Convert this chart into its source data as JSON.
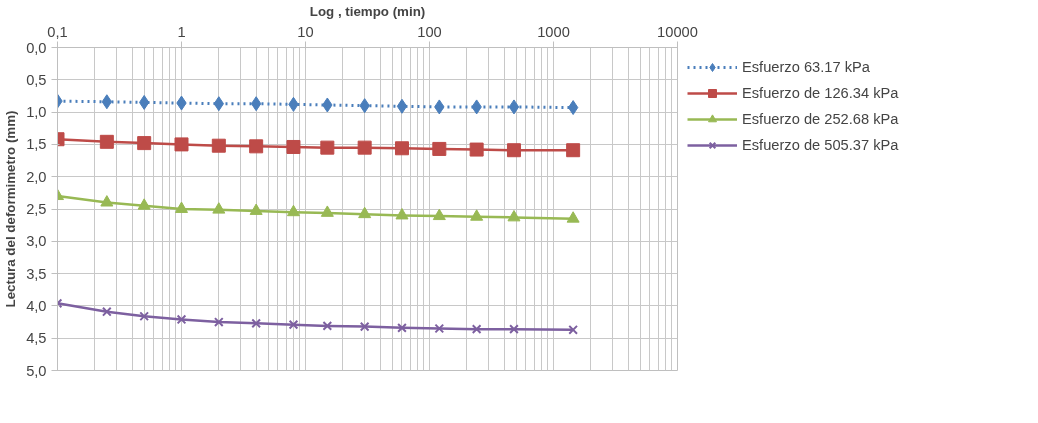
{
  "chart_data": {
    "type": "line",
    "xlabel": "Log , tiempo (min)",
    "ylabel": "Lectura del deformimetro (mm)",
    "log": "x",
    "grid": true,
    "legend": "right",
    "xlim": [
      0.1,
      10000
    ],
    "xticks": [
      {
        "value": 0.1,
        "label": "0,1"
      },
      1,
      10,
      100,
      1000,
      10000
    ],
    "ylim": [
      5,
      0
    ],
    "yticks": [
      {
        "value": 0,
        "label": "0,0"
      },
      {
        "value": 0.5,
        "label": "0,5"
      },
      {
        "value": 1,
        "label": "1,0"
      },
      {
        "value": 1.5,
        "label": "1,5"
      },
      {
        "value": 2,
        "label": "2,0"
      },
      {
        "value": 2.5,
        "label": "2,5"
      },
      {
        "value": 3,
        "label": "3,0"
      },
      {
        "value": 3.5,
        "label": "3,5"
      },
      {
        "value": 4,
        "label": "4,0"
      },
      {
        "value": 4.5,
        "label": "4,5"
      },
      {
        "value": 5,
        "label": "5,0"
      }
    ],
    "x": [
      0.1,
      0.25,
      0.5,
      1,
      2,
      4,
      8,
      15,
      30,
      60,
      120,
      240,
      480,
      1440
    ],
    "series": [
      {
        "name": "Esfuerzo 63.17 kPa",
        "color": "#4a7ebb",
        "marker": "diamond",
        "line_style": "dotted",
        "values": [
          0.83,
          0.84,
          0.85,
          0.86,
          0.87,
          0.87,
          0.88,
          0.89,
          0.9,
          0.91,
          0.92,
          0.92,
          0.92,
          0.93
        ]
      },
      {
        "name": "Esfuerzo de 126.34 kPa",
        "color": "#be4b48",
        "marker": "square",
        "line_style": "solid",
        "values": [
          1.42,
          1.46,
          1.48,
          1.5,
          1.52,
          1.53,
          1.54,
          1.55,
          1.55,
          1.56,
          1.57,
          1.58,
          1.59,
          1.59
        ]
      },
      {
        "name": "Esfuerzo de 252.68 kPa",
        "color": "#98b954",
        "marker": "triangle",
        "line_style": "solid",
        "values": [
          2.3,
          2.4,
          2.45,
          2.5,
          2.51,
          2.53,
          2.55,
          2.56,
          2.58,
          2.6,
          2.61,
          2.62,
          2.63,
          2.65
        ]
      },
      {
        "name": "Esfuerzo de 505.37 kPa",
        "color": "#7d60a0",
        "marker": "cross",
        "line_style": "solid",
        "values": [
          3.96,
          4.09,
          4.16,
          4.21,
          4.25,
          4.27,
          4.29,
          4.31,
          4.32,
          4.34,
          4.35,
          4.36,
          4.36,
          4.37
        ]
      }
    ]
  }
}
